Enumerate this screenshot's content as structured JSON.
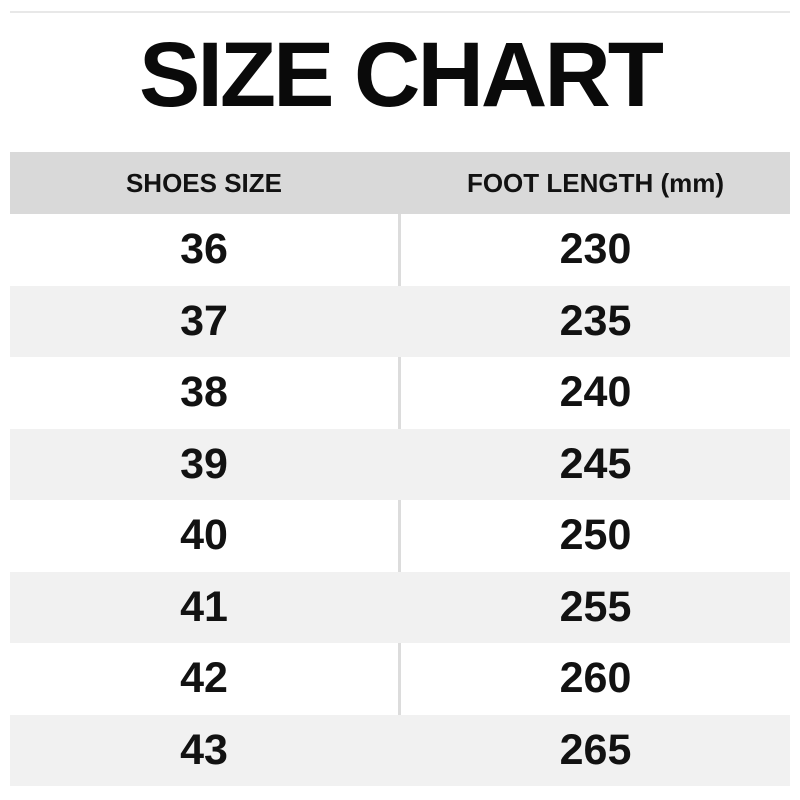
{
  "page": {
    "title": "SIZE CHART"
  },
  "colors": {
    "background": "#ffffff",
    "header_row_bg": "#d9d9d9",
    "alt_row_bg": "#f1f1f1",
    "column_divider": "#dcdcdc",
    "top_rule": "#e8e8e8",
    "text": "#121212"
  },
  "chart_data": {
    "type": "table",
    "title": "SIZE CHART",
    "columns": [
      "SHOES SIZE",
      "FOOT LENGTH (mm)"
    ],
    "rows": [
      [
        "36",
        "230"
      ],
      [
        "37",
        "235"
      ],
      [
        "38",
        "240"
      ],
      [
        "39",
        "245"
      ],
      [
        "40",
        "250"
      ],
      [
        "41",
        "255"
      ],
      [
        "42",
        "260"
      ],
      [
        "43",
        "265"
      ]
    ],
    "layout": {
      "columns_count": 2,
      "header_bg": "#d9d9d9",
      "row_striping": [
        "#ffffff",
        "#f1f1f1"
      ],
      "grid": "horizontal stripes, center divider on white rows only"
    }
  }
}
